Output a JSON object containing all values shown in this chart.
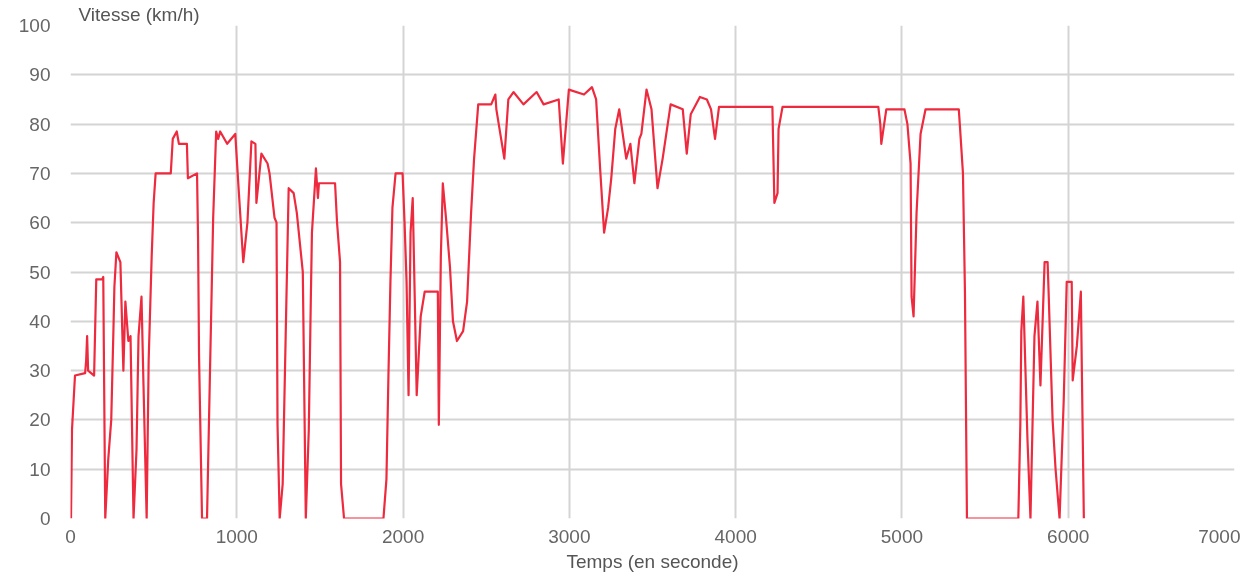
{
  "chart_data": {
    "type": "line",
    "xlabel": "Temps (en seconde)",
    "ylabel": "Vitesse (km/h)",
    "xlim": [
      0,
      7000
    ],
    "ylim": [
      0,
      100
    ],
    "xticks": [
      0,
      1000,
      2000,
      3000,
      4000,
      5000,
      6000,
      7000
    ],
    "yticks": [
      0,
      10,
      20,
      30,
      40,
      50,
      60,
      70,
      80,
      90,
      100
    ],
    "grid": true,
    "line_style": "solid",
    "series": [
      {
        "color": "#ee2a3e",
        "x": [
          3,
          9,
          27,
          88,
          94,
          100,
          106,
          142,
          155,
          191,
          197,
          209,
          227,
          245,
          258,
          264,
          276,
          300,
          318,
          330,
          348,
          361,
          379,
          397,
          409,
          427,
          439,
          458,
          470,
          488,
          500,
          512,
          603,
          615,
          639,
          652,
          700,
          706,
          761,
          767,
          773,
          791,
          821,
          839,
          858,
          876,
          888,
          900,
          942,
          991,
          1009,
          1039,
          1064,
          1088,
          1112,
          1118,
          1148,
          1185,
          1197,
          1227,
          1239,
          1245,
          1258,
          1276,
          1294,
          1312,
          1342,
          1361,
          1397,
          1415,
          1433,
          1445,
          1452,
          1476,
          1488,
          1494,
          1591,
          1603,
          1621,
          1627,
          1645,
          1882,
          1900,
          1912,
          1924,
          1936,
          1955,
          1997,
          2009,
          2021,
          2033,
          2045,
          2058,
          2082,
          2106,
          2130,
          2209,
          2215,
          2227,
          2239,
          2258,
          2282,
          2300,
          2324,
          2361,
          2385,
          2409,
          2427,
          2452,
          2530,
          2555,
          2561,
          2609,
          2633,
          2664,
          2724,
          2803,
          2845,
          2936,
          2961,
          2997,
          3088,
          3136,
          3161,
          3185,
          3209,
          3233,
          3252,
          3276,
          3300,
          3342,
          3367,
          3391,
          3421,
          3433,
          3464,
          3494,
          3530,
          3561,
          3609,
          3682,
          3706,
          3730,
          3785,
          3827,
          3852,
          3876,
          3900,
          4221,
          4233,
          4252,
          4258,
          4282,
          4858,
          4870,
          4876,
          4906,
          5015,
          5033,
          5052,
          5058,
          5070,
          5088,
          5112,
          5142,
          5342,
          5348,
          5367,
          5379,
          5391,
          5700,
          5712,
          5718,
          5730,
          5755,
          5773,
          5797,
          5815,
          5833,
          5858,
          5876,
          5882,
          5906,
          5924,
          5948,
          5973,
          5991,
          6021,
          6027,
          6052,
          6076,
          6082,
          6094
        ],
        "values": [
          0,
          18,
          29,
          29.5,
          32,
          37,
          30,
          29,
          48.5,
          48.5,
          49,
          0,
          12,
          20,
          38,
          47,
          54,
          52,
          30,
          44,
          36,
          37,
          0,
          14,
          37,
          45,
          27,
          0,
          32,
          53,
          64,
          70,
          70,
          77,
          78.5,
          76,
          76,
          69,
          70,
          57,
          33,
          0,
          0,
          30,
          61,
          78.5,
          77,
          78.5,
          76,
          78,
          68,
          52,
          60,
          76.5,
          76,
          64,
          74,
          72,
          70,
          61,
          60,
          19,
          0,
          7,
          37,
          67,
          66,
          62,
          50,
          0,
          18,
          44,
          58,
          71,
          65,
          68,
          68,
          60,
          52,
          7,
          0,
          0,
          8,
          29,
          48,
          63,
          70,
          70,
          60,
          48,
          25,
          58,
          65,
          25,
          41,
          46,
          46,
          19,
          53,
          68,
          61,
          51,
          40,
          36,
          38,
          44,
          62,
          73,
          84,
          84,
          86,
          83,
          73,
          85,
          86.5,
          84,
          86.5,
          84,
          85,
          72,
          87,
          86,
          87.5,
          85,
          71,
          58,
          63,
          69,
          79,
          83,
          73,
          76,
          68,
          77,
          78,
          87,
          83,
          67,
          73,
          84,
          83,
          74,
          82,
          85.5,
          85,
          83,
          77,
          83.5,
          83.5,
          64,
          66,
          79,
          83.5,
          83.5,
          80,
          76,
          83,
          83,
          80,
          72,
          45,
          41,
          62,
          78,
          83,
          83,
          80,
          70,
          46,
          0,
          0,
          19,
          38,
          45,
          16,
          0,
          37,
          44,
          27,
          52,
          52,
          46,
          20,
          10,
          0,
          24,
          48,
          48,
          28,
          35,
          46,
          30,
          0
        ]
      }
    ]
  }
}
